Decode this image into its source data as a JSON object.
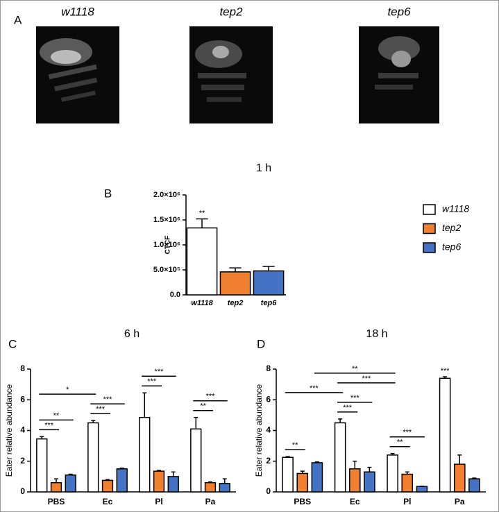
{
  "panel_a": {
    "label": "A",
    "images": [
      "w1118",
      "tep2",
      "tep6"
    ]
  },
  "legend": [
    {
      "name": "w1118",
      "color": "#ffffff"
    },
    {
      "name": "tep2",
      "color": "#f07f2f"
    },
    {
      "name": "tep6",
      "color": "#4472c4"
    }
  ],
  "chart_data": [
    {
      "type": "bar",
      "panel": "B",
      "title": "1 h",
      "y_label": "CTCF",
      "categories": [
        "w1118",
        "tep2",
        "tep6"
      ],
      "values": [
        1340000,
        460000,
        480000
      ],
      "errors": [
        180000,
        80000,
        90000
      ],
      "colors": [
        "#ffffff",
        "#f07f2f",
        "#4472c4"
      ],
      "ylim": [
        0,
        2000000
      ],
      "yticks": [
        {
          "value": 0,
          "label": "0.0"
        },
        {
          "value": 500000,
          "label": "5.0×10⁵"
        },
        {
          "value": 1000000,
          "label": "1.0×10⁶"
        },
        {
          "value": 1500000,
          "label": "1.5×10⁶"
        },
        {
          "value": 2000000,
          "label": "2.0×10⁶"
        }
      ],
      "annotations": [
        {
          "label": "**",
          "from": [
            0,
            0
          ],
          "to": [
            0,
            0
          ]
        }
      ]
    },
    {
      "type": "grouped_bar",
      "panel": "C",
      "title": "6 h",
      "y_label": "Eater relative abundance",
      "categories": [
        "PBS",
        "Ec",
        "Pl",
        "Pa"
      ],
      "series": [
        {
          "name": "w1118",
          "color": "#ffffff",
          "values": [
            3.45,
            4.5,
            4.85,
            4.1
          ],
          "errors": [
            0.15,
            0.15,
            1.6,
            0.75
          ]
        },
        {
          "name": "tep2",
          "color": "#f07f2f",
          "values": [
            0.6,
            0.75,
            1.35,
            0.6
          ],
          "errors": [
            0.25,
            0.05,
            0.05,
            0.05
          ]
        },
        {
          "name": "tep6",
          "color": "#4472c4",
          "values": [
            1.1,
            1.5,
            1.0,
            0.55
          ],
          "errors": [
            0.05,
            0.05,
            0.3,
            0.3
          ]
        }
      ],
      "ylim": [
        0,
        8
      ],
      "yticks": [
        0,
        2,
        4,
        6,
        8
      ],
      "annotations": [
        {
          "label": "***",
          "from": [
            0,
            0
          ],
          "to": [
            0,
            1
          ]
        },
        {
          "label": "**",
          "from": [
            0,
            0
          ],
          "to": [
            0,
            2
          ]
        },
        {
          "label": "***",
          "from": [
            1,
            0
          ],
          "to": [
            1,
            1
          ]
        },
        {
          "label": "***",
          "from": [
            1,
            0
          ],
          "to": [
            1,
            2
          ]
        },
        {
          "label": "***",
          "from": [
            2,
            0
          ],
          "to": [
            2,
            1
          ]
        },
        {
          "label": "***",
          "from": [
            2,
            0
          ],
          "to": [
            2,
            2
          ]
        },
        {
          "label": "**",
          "from": [
            3,
            0
          ],
          "to": [
            3,
            1
          ]
        },
        {
          "label": "***",
          "from": [
            3,
            0
          ],
          "to": [
            3,
            2
          ]
        },
        {
          "label": "*",
          "from": [
            0,
            0
          ],
          "to": [
            1,
            0
          ]
        }
      ]
    },
    {
      "type": "grouped_bar",
      "panel": "D",
      "title": "18 h",
      "y_label": "Eater relative abundance",
      "categories": [
        "PBS",
        "Ec",
        "Pl",
        "Pa"
      ],
      "series": [
        {
          "name": "w1118",
          "color": "#ffffff",
          "values": [
            2.25,
            4.5,
            2.4,
            7.4
          ],
          "errors": [
            0.05,
            0.25,
            0.1,
            0.1
          ]
        },
        {
          "name": "tep2",
          "color": "#f07f2f",
          "values": [
            1.2,
            1.5,
            1.15,
            1.8
          ],
          "errors": [
            0.15,
            0.5,
            0.15,
            0.6
          ]
        },
        {
          "name": "tep6",
          "color": "#4472c4",
          "values": [
            1.9,
            1.3,
            0.35,
            0.85
          ],
          "errors": [
            0.05,
            0.3,
            0.02,
            0.05
          ]
        }
      ],
      "ylim": [
        0,
        8
      ],
      "yticks": [
        0,
        2,
        4,
        6,
        8
      ],
      "annotations": [
        {
          "label": "**",
          "from": [
            0,
            0
          ],
          "to": [
            0,
            1
          ]
        },
        {
          "label": "***",
          "from": [
            1,
            0
          ],
          "to": [
            1,
            1
          ]
        },
        {
          "label": "***",
          "from": [
            1,
            0
          ],
          "to": [
            1,
            2
          ]
        },
        {
          "label": "**",
          "from": [
            2,
            0
          ],
          "to": [
            2,
            1
          ]
        },
        {
          "label": "***",
          "from": [
            2,
            0
          ],
          "to": [
            2,
            2
          ]
        },
        {
          "label": "***",
          "from": [
            3,
            0
          ],
          "to": [
            3,
            0
          ]
        },
        {
          "label": "***",
          "from": [
            0,
            0
          ],
          "to": [
            1,
            0
          ]
        },
        {
          "label": "***",
          "from": [
            1,
            0
          ],
          "to": [
            2,
            0
          ]
        },
        {
          "label": "**",
          "from": [
            0,
            2
          ],
          "to": [
            2,
            0
          ]
        }
      ]
    }
  ]
}
